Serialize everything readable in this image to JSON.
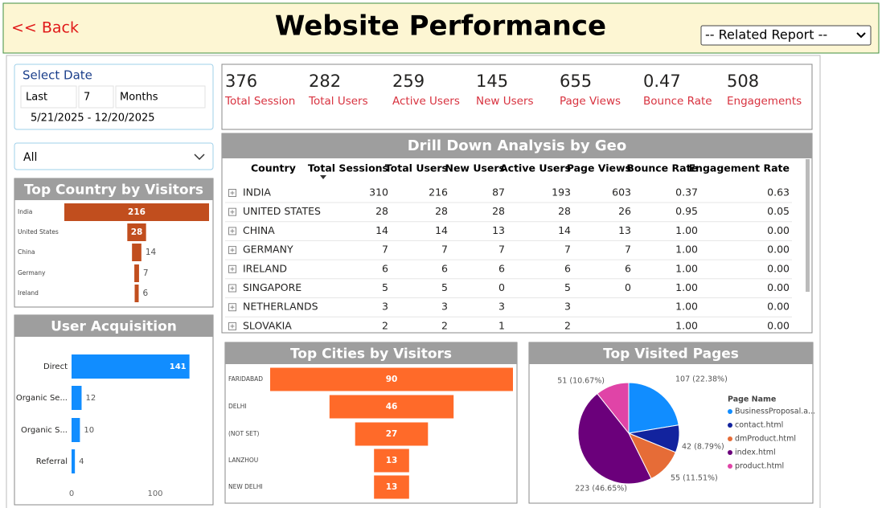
{
  "header": {
    "back": "<< Back",
    "title": "Website Performance",
    "related_report": "-- Related Report --"
  },
  "filters": {
    "label": "Select Date",
    "relative": "Last",
    "count": 7,
    "unit": "Months",
    "range": "5/21/2025 - 12/20/2025",
    "selection": "All"
  },
  "kpis": [
    {
      "value": 376,
      "label": "Total Session"
    },
    {
      "value": 282,
      "label": "Total Users"
    },
    {
      "value": 259,
      "label": "Active Users"
    },
    {
      "value": 145,
      "label": "New Users"
    },
    {
      "value": 655,
      "label": "Page Views"
    },
    {
      "value": 0.47,
      "label": "Bounce Rate"
    },
    {
      "value": 508,
      "label": "Engagements"
    }
  ],
  "table": {
    "title": "Drill Down Analysis by Geo",
    "columns": [
      "Country",
      "Total Sessions",
      "Total Users",
      "New Users",
      "Active Users",
      "Page Views",
      "Bounce Rate",
      "Engagement Rate"
    ],
    "rows": [
      [
        "INDIA",
        310,
        216,
        87,
        193,
        603,
        "0.37",
        "0.63"
      ],
      [
        "UNITED STATES",
        28,
        28,
        28,
        28,
        26,
        "0.95",
        "0.05"
      ],
      [
        "CHINA",
        14,
        14,
        13,
        14,
        13,
        "1.00",
        "0.00"
      ],
      [
        "GERMANY",
        7,
        7,
        7,
        7,
        7,
        "1.00",
        "0.00"
      ],
      [
        "IRELAND",
        6,
        6,
        6,
        6,
        6,
        "1.00",
        "0.00"
      ],
      [
        "SINGAPORE",
        5,
        5,
        0,
        5,
        0,
        "1.00",
        "0.00"
      ],
      [
        "NETHERLANDS",
        3,
        3,
        3,
        3,
        null,
        "1.00",
        "0.00"
      ],
      [
        "SLOVAKIA",
        2,
        2,
        1,
        2,
        null,
        "1.00",
        "0.00"
      ]
    ]
  },
  "chart_data": [
    {
      "type": "funnel",
      "title": "Top Country by Visitors",
      "categories": [
        "India",
        "United States",
        "China",
        "Germany",
        "Ireland"
      ],
      "values": [
        216,
        28,
        14,
        7,
        6
      ],
      "color": "#c14e1e"
    },
    {
      "type": "bar",
      "title": "User Acquisition",
      "categories": [
        "Direct",
        "Organic Se...",
        "Organic S...",
        "Referral"
      ],
      "values": [
        141,
        12,
        10,
        4
      ],
      "color": "#118dff",
      "xlim": [
        0,
        160
      ],
      "xticks": [
        0,
        100
      ]
    },
    {
      "type": "funnel",
      "title": "Top Cities by Visitors",
      "categories": [
        "FARIDABAD",
        "DELHI",
        "(NOT SET)",
        "LANZHOU",
        "NEW DELHI"
      ],
      "values": [
        90,
        46,
        27,
        13,
        13
      ],
      "color": "#ff6a29"
    },
    {
      "type": "pie",
      "title": "Top Visited Pages",
      "legend_title": "Page Name",
      "categories": [
        "BusinessProposal.a...",
        "contact.html",
        "dmProduct.html",
        "index.html",
        "product.html"
      ],
      "values": [
        107,
        42,
        55,
        223,
        51
      ],
      "value_labels": [
        "107 (22.38%)",
        "42 (8.79%)",
        "55 (11.51%)",
        "223 (46.65%)",
        "51 (10.67%)"
      ],
      "colors": [
        "#118dff",
        "#12239e",
        "#e66c37",
        "#6b007b",
        "#e044a7"
      ]
    }
  ]
}
